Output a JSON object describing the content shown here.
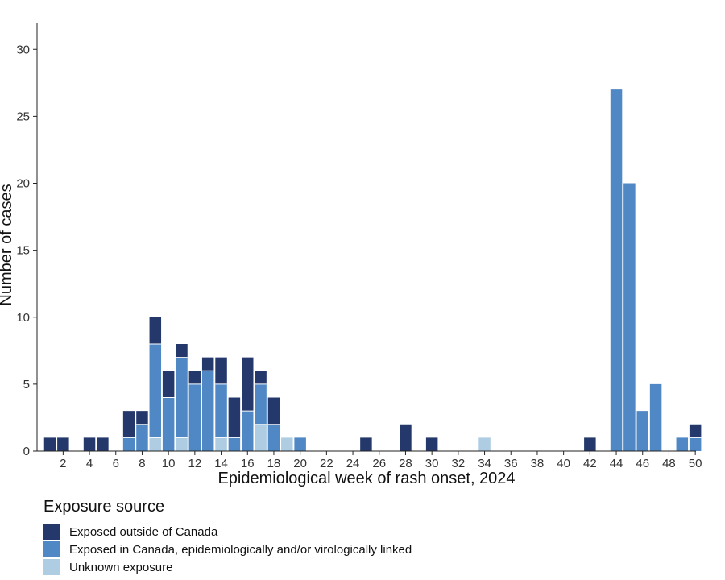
{
  "chart_data": {
    "type": "bar",
    "stacked": true,
    "title": "",
    "xlabel": "Epidemiological week of rash onset, 2024",
    "ylabel": "Number of cases",
    "ylim": [
      0,
      32
    ],
    "yticks": [
      0,
      5,
      10,
      15,
      20,
      25,
      30
    ],
    "xticks": [
      2,
      4,
      6,
      8,
      10,
      12,
      14,
      16,
      18,
      20,
      22,
      24,
      26,
      28,
      30,
      32,
      34,
      36,
      38,
      40,
      42,
      44,
      46,
      48,
      50
    ],
    "weeks": [
      1,
      2,
      3,
      4,
      5,
      6,
      7,
      8,
      9,
      10,
      11,
      12,
      13,
      14,
      15,
      16,
      17,
      18,
      19,
      20,
      21,
      22,
      23,
      24,
      25,
      26,
      27,
      28,
      29,
      30,
      31,
      32,
      33,
      34,
      35,
      36,
      37,
      38,
      39,
      40,
      41,
      42,
      43,
      44,
      45,
      46,
      47,
      48,
      49,
      50
    ],
    "legend_title": "Exposure source",
    "series": [
      {
        "name": "Unknown exposure",
        "color": "#aecde3",
        "values": [
          0,
          0,
          0,
          0,
          0,
          0,
          0,
          0,
          1,
          0,
          1,
          0,
          0,
          1,
          0,
          0,
          2,
          0,
          1,
          0,
          0,
          0,
          0,
          0,
          0,
          0,
          0,
          0,
          0,
          0,
          0,
          0,
          0,
          1,
          0,
          0,
          0,
          0,
          0,
          0,
          0,
          0,
          0,
          0,
          0,
          0,
          0,
          0,
          0,
          0
        ]
      },
      {
        "name": "Exposed in Canada, epidemiologically and/or virologically linked",
        "color": "#5088c5",
        "values": [
          0,
          0,
          0,
          0,
          0,
          0,
          1,
          2,
          7,
          4,
          6,
          5,
          6,
          4,
          1,
          3,
          3,
          2,
          0,
          1,
          0,
          0,
          0,
          0,
          0,
          0,
          0,
          0,
          0,
          0,
          0,
          0,
          0,
          0,
          0,
          0,
          0,
          0,
          0,
          0,
          0,
          0,
          0,
          27,
          20,
          3,
          5,
          0,
          1,
          1
        ]
      },
      {
        "name": "Exposed outside of Canada",
        "color": "#24386b",
        "values": [
          1,
          1,
          0,
          1,
          1,
          0,
          2,
          1,
          2,
          2,
          1,
          1,
          1,
          2,
          3,
          4,
          1,
          2,
          0,
          0,
          0,
          0,
          0,
          0,
          1,
          0,
          0,
          2,
          0,
          1,
          0,
          0,
          0,
          0,
          0,
          0,
          0,
          0,
          0,
          0,
          0,
          1,
          0,
          0,
          0,
          0,
          0,
          0,
          0,
          1
        ]
      }
    ],
    "legend_order": [
      2,
      1,
      0
    ]
  }
}
